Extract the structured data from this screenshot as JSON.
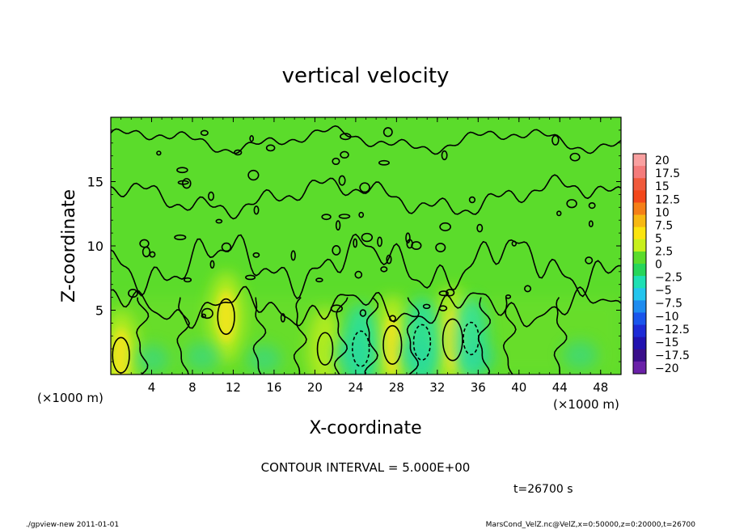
{
  "chart_data": {
    "type": "heatmap",
    "title": "vertical velocity",
    "xlabel": "X-coordinate",
    "ylabel": "Z-coordinate",
    "x_unit": "(×1000 m)",
    "y_unit": "(×1000 m)",
    "xlim": [
      0,
      50
    ],
    "ylim": [
      0,
      20
    ],
    "x_ticks": [
      4,
      8,
      12,
      16,
      20,
      24,
      28,
      32,
      36,
      40,
      44,
      48
    ],
    "y_ticks": [
      5,
      10,
      15
    ],
    "colorbar": {
      "levels": [
        20,
        17.5,
        15,
        12.5,
        10,
        7.5,
        5,
        2.5,
        0,
        -2.5,
        -5,
        -7.5,
        -10,
        -12.5,
        -15,
        -17.5,
        -20
      ],
      "colors": [
        "#f9a0a0",
        "#f47b7b",
        "#f05a3c",
        "#f3471a",
        "#f57f17",
        "#f7b812",
        "#fbe40f",
        "#c8f01c",
        "#5bdc2b",
        "#27d65a",
        "#1ee0b4",
        "#23c5ee",
        "#1e8cf0",
        "#1a55ec",
        "#1d2ad6",
        "#2112b0",
        "#3a0f8a",
        "#6a21a8"
      ]
    },
    "contour_interval_text": "CONTOUR INTERVAL = 5.000E+00",
    "time_text": "t=26700 s",
    "cores": [
      {
        "x": 1.0,
        "z": 1.5,
        "w": 6
      },
      {
        "x": 11.3,
        "z": 4.5,
        "w": 6
      },
      {
        "x": 21.0,
        "z": 2.0,
        "w": 5
      },
      {
        "x": 27.6,
        "z": 2.3,
        "w": 7
      },
      {
        "x": 33.5,
        "z": 2.7,
        "w": 8
      },
      {
        "x": 24.5,
        "z": 2.0,
        "w": -6
      },
      {
        "x": 30.5,
        "z": 2.5,
        "w": -6
      },
      {
        "x": 35.3,
        "z": 2.8,
        "w": -5
      }
    ]
  },
  "footer": {
    "left": "./gpview-new   2011-01-01",
    "right": "MarsCond_VelZ.nc@VelZ,x=0:50000,z=0:20000,t=26700"
  }
}
